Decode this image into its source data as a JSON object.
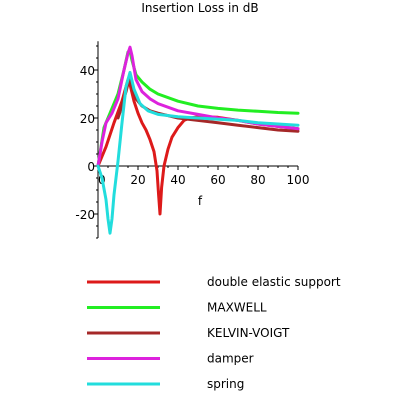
{
  "chart_data": {
    "type": "line",
    "title": "Insertion Loss in dB",
    "xlabel": "f",
    "ylabel": "",
    "xlim": [
      0,
      100
    ],
    "ylim": [
      -30,
      52
    ],
    "x_ticks": [
      0,
      20,
      40,
      60,
      80,
      100
    ],
    "y_ticks": [
      -20,
      0,
      20,
      40
    ],
    "grid": false,
    "legend_position": "bottom",
    "series": [
      {
        "name": "double elastic support",
        "color": "#dd1a1a",
        "points": [
          [
            0,
            0
          ],
          [
            4,
            8
          ],
          [
            8,
            18
          ],
          [
            12,
            27
          ],
          [
            14,
            33
          ],
          [
            15,
            36
          ],
          [
            16,
            34
          ],
          [
            18,
            27
          ],
          [
            20,
            22
          ],
          [
            22,
            18
          ],
          [
            24,
            15
          ],
          [
            26,
            11
          ],
          [
            28,
            6
          ],
          [
            29.5,
            -2
          ],
          [
            30.3,
            -12
          ],
          [
            31,
            -20
          ],
          [
            31.8,
            -9
          ],
          [
            33,
            0
          ],
          [
            35,
            7
          ],
          [
            37,
            12
          ],
          [
            40,
            16
          ],
          [
            43,
            19
          ],
          [
            46,
            20
          ],
          [
            50,
            20.5
          ],
          [
            60,
            20.3
          ],
          [
            70,
            19
          ],
          [
            80,
            17.5
          ],
          [
            90,
            16.5
          ],
          [
            100,
            15.5
          ]
        ]
      },
      {
        "name": "MAXWELL",
        "color": "#22ee22",
        "points": [
          [
            0,
            0
          ],
          [
            3,
            16
          ],
          [
            6,
            22
          ],
          [
            10,
            30
          ],
          [
            13,
            40
          ],
          [
            15,
            47.5
          ],
          [
            16,
            48
          ],
          [
            17,
            44
          ],
          [
            19,
            38
          ],
          [
            22,
            35
          ],
          [
            26,
            32
          ],
          [
            30,
            30
          ],
          [
            40,
            27
          ],
          [
            50,
            25
          ],
          [
            60,
            24
          ],
          [
            70,
            23.3
          ],
          [
            80,
            22.8
          ],
          [
            90,
            22.3
          ],
          [
            100,
            22
          ]
        ]
      },
      {
        "name": "KELVIN-VOIGT",
        "color": "#a52828",
        "points": [
          [
            10,
            20
          ],
          [
            12,
            25
          ],
          [
            14,
            31
          ],
          [
            15.5,
            36
          ],
          [
            17,
            33
          ],
          [
            19,
            28
          ],
          [
            22,
            25
          ],
          [
            26,
            23
          ],
          [
            30,
            22
          ],
          [
            40,
            20
          ],
          [
            50,
            19
          ],
          [
            60,
            18
          ],
          [
            70,
            17
          ],
          [
            80,
            16
          ],
          [
            90,
            15
          ],
          [
            100,
            14.5
          ]
        ]
      },
      {
        "name": "damper",
        "color": "#dd22dd",
        "points": [
          [
            0,
            0
          ],
          [
            2,
            10
          ],
          [
            4,
            18
          ],
          [
            7,
            22
          ],
          [
            10,
            28
          ],
          [
            13,
            40
          ],
          [
            15,
            47
          ],
          [
            16,
            49.5
          ],
          [
            17,
            46
          ],
          [
            19,
            36
          ],
          [
            22,
            31
          ],
          [
            26,
            28
          ],
          [
            30,
            26
          ],
          [
            40,
            23
          ],
          [
            50,
            21.5
          ],
          [
            60,
            20
          ],
          [
            70,
            19
          ],
          [
            80,
            17.5
          ],
          [
            90,
            16.5
          ],
          [
            100,
            15.5
          ]
        ]
      },
      {
        "name": "spring",
        "color": "#22dddd",
        "points": [
          [
            0,
            0
          ],
          [
            2,
            -5
          ],
          [
            4,
            -14
          ],
          [
            5,
            -22
          ],
          [
            6,
            -28
          ],
          [
            7,
            -22
          ],
          [
            8,
            -12
          ],
          [
            10,
            2
          ],
          [
            12,
            18
          ],
          [
            14,
            33
          ],
          [
            16,
            39
          ],
          [
            18,
            32
          ],
          [
            21,
            26
          ],
          [
            25,
            23
          ],
          [
            30,
            21.5
          ],
          [
            40,
            20.5
          ],
          [
            50,
            20
          ],
          [
            60,
            19.5
          ],
          [
            70,
            19
          ],
          [
            80,
            18
          ],
          [
            90,
            17.5
          ],
          [
            100,
            17
          ]
        ]
      }
    ]
  }
}
